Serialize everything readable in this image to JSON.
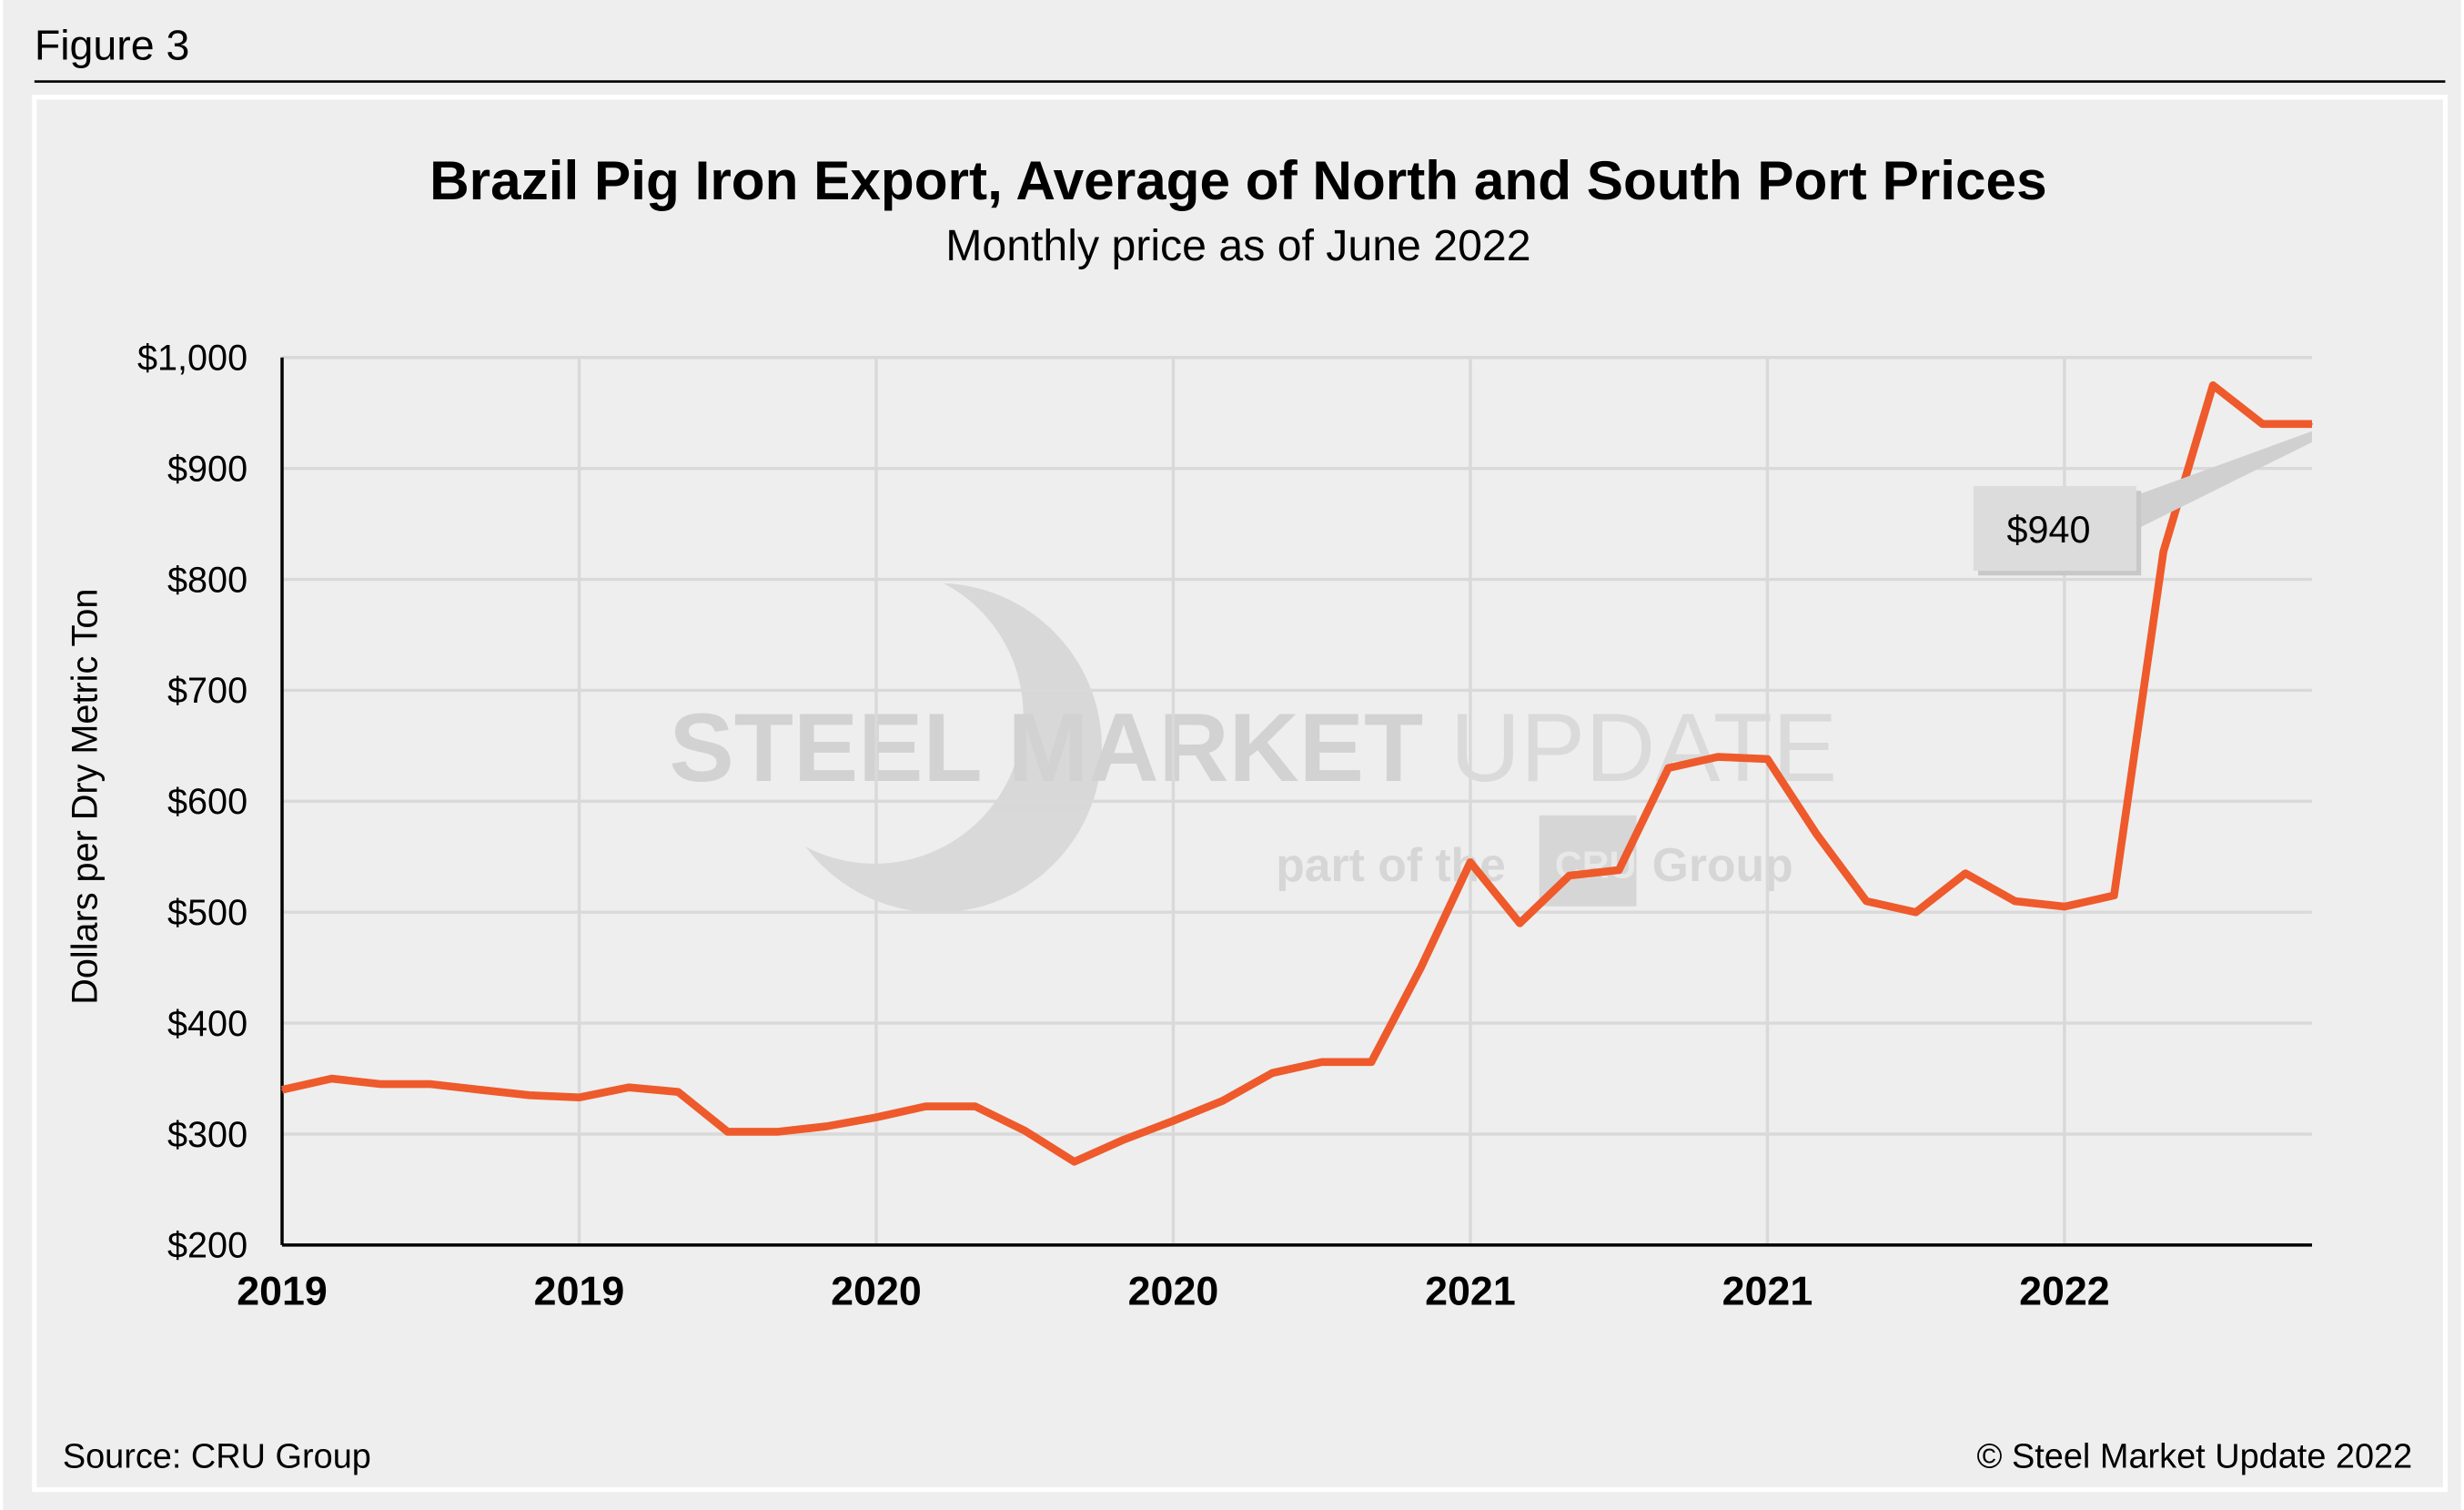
{
  "figure_label": "Figure 3",
  "source": "Source: CRU Group",
  "copyright": "© Steel Market Update 2022",
  "watermark": {
    "line1_bold": "STEEL MARKET",
    "line1_light": "UPDATE",
    "line2_a": "part of the",
    "line2_logo": "CRU",
    "line2_b": "Group"
  },
  "colors": {
    "line": "#ee5a2b",
    "background": "#eeeeee",
    "grid": "#d9d9d9"
  },
  "chart_data": {
    "type": "line",
    "title": "Brazil Pig Iron Export, Average of North and South Port Prices",
    "subtitle": "Monthly price as of June 2022",
    "ylabel": "Dollars per Dry Metric Ton",
    "xlabel": "",
    "ylim": [
      200,
      1000
    ],
    "yticks": [
      "$200",
      "$300",
      "$400",
      "$500",
      "$600",
      "$700",
      "$800",
      "$900",
      "$1,000"
    ],
    "ytick_values": [
      200,
      300,
      400,
      500,
      600,
      700,
      800,
      900,
      1000
    ],
    "xtick_labels": [
      "2019",
      "2019",
      "2020",
      "2020",
      "2021",
      "2021",
      "2022"
    ],
    "xtick_every_months": 6,
    "grid": true,
    "x": [
      "2019-01",
      "2019-02",
      "2019-03",
      "2019-04",
      "2019-05",
      "2019-06",
      "2019-07",
      "2019-08",
      "2019-09",
      "2019-10",
      "2019-11",
      "2019-12",
      "2020-01",
      "2020-02",
      "2020-03",
      "2020-04",
      "2020-05",
      "2020-06",
      "2020-07",
      "2020-08",
      "2020-09",
      "2020-10",
      "2020-11",
      "2020-12",
      "2021-01",
      "2021-02",
      "2021-03",
      "2021-04",
      "2021-05",
      "2021-06",
      "2021-07",
      "2021-08",
      "2021-09",
      "2021-10",
      "2021-11",
      "2021-12",
      "2022-01",
      "2022-02",
      "2022-03",
      "2022-04",
      "2022-05",
      "2022-06"
    ],
    "values": [
      340,
      350,
      345,
      345,
      340,
      335,
      333,
      342,
      338,
      302,
      302,
      307,
      315,
      325,
      325,
      303,
      275,
      295,
      312,
      330,
      355,
      365,
      365,
      450,
      545,
      490,
      533,
      538,
      630,
      640,
      638,
      570,
      510,
      500,
      535,
      510,
      505,
      515,
      825,
      975,
      940,
      940
    ],
    "annotation": {
      "text": "$940",
      "value": 940
    }
  }
}
